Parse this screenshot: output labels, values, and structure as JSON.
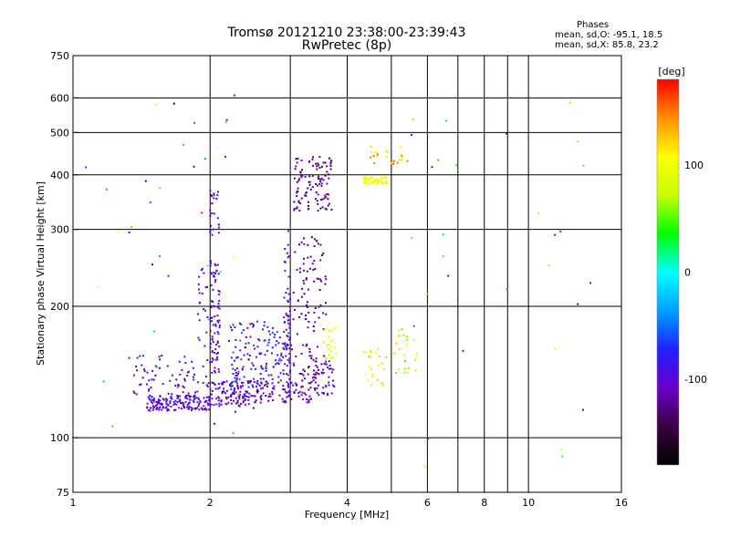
{
  "title": "Tromsø 20121210 23:38:00-23:39:43",
  "subtitle": "RwPretec (8p)",
  "phases": {
    "heading": "Phases",
    "line_o": "mean, sd,O: -95.1, 18.5",
    "line_x": "mean, sd,X: 85.8, 23.2"
  },
  "colorbar": {
    "label": "[deg]",
    "range": [
      -180,
      180
    ],
    "ticks": [
      {
        "value": 100,
        "label": "100"
      },
      {
        "value": 0,
        "label": "0"
      },
      {
        "value": -100,
        "label": "-100"
      }
    ],
    "colors": [
      "#000000",
      "#3a0040",
      "#6a00c8",
      "#2020ff",
      "#00a0ff",
      "#00ffff",
      "#00ff00",
      "#c8ff00",
      "#ffff00",
      "#ff9000",
      "#ff0000"
    ]
  },
  "chart_data": {
    "type": "scatter",
    "title": "Tromsø 20121210 23:38:00-23:39:43",
    "subtitle": "RwPretec (8p)",
    "xlabel": "Frequency [MHz]",
    "ylabel": "Stationary phase Virtual Height [km]",
    "xscale": "log",
    "yscale": "log",
    "xlim": [
      1,
      16
    ],
    "ylim": [
      75,
      750
    ],
    "xticks": [
      {
        "value": 1,
        "label": "1"
      },
      {
        "value": 2,
        "label": "2"
      },
      {
        "value": 4,
        "label": "4"
      },
      {
        "value": 6,
        "label": "6"
      },
      {
        "value": 8,
        "label": "8"
      },
      {
        "value": 10,
        "label": "10"
      },
      {
        "value": 16,
        "label": "16"
      }
    ],
    "xgrid": [
      2,
      3,
      4,
      5,
      6,
      7,
      8,
      9,
      10
    ],
    "yticks": [
      {
        "value": 75,
        "label": "75"
      },
      {
        "value": 100,
        "label": "100"
      },
      {
        "value": 200,
        "label": "200"
      },
      {
        "value": 300,
        "label": "300"
      },
      {
        "value": 400,
        "label": "400"
      },
      {
        "value": 500,
        "label": "500"
      },
      {
        "value": 600,
        "label": "600"
      },
      {
        "value": 750,
        "label": "750"
      }
    ],
    "ygrid": [
      100,
      200,
      300,
      400,
      500,
      600
    ],
    "grid": true,
    "color_by": "phase [deg]",
    "clusters": [
      {
        "freq": [
          1.45,
          2.0
        ],
        "height": [
          115,
          125
        ],
        "phase": [
          -115,
          -85
        ],
        "count": 160
      },
      {
        "freq": [
          1.35,
          2.05
        ],
        "height": [
          125,
          155
        ],
        "phase": [
          -120,
          -80
        ],
        "count": 70
      },
      {
        "freq": [
          2.0,
          2.55
        ],
        "height": [
          118,
          135
        ],
        "phase": [
          -120,
          -80
        ],
        "count": 120
      },
      {
        "freq": [
          2.0,
          2.1
        ],
        "height": [
          140,
          255
        ],
        "phase": [
          -110,
          -90
        ],
        "count": 80
      },
      {
        "freq": [
          2.0,
          2.1
        ],
        "height": [
          280,
          375
        ],
        "phase": [
          -110,
          -90
        ],
        "count": 25
      },
      {
        "freq": [
          1.88,
          1.97
        ],
        "height": [
          160,
          250
        ],
        "phase": [
          -110,
          -90
        ],
        "count": 20
      },
      {
        "freq": [
          2.2,
          3.0
        ],
        "height": [
          130,
          185
        ],
        "phase": [
          -115,
          -50
        ],
        "count": 150
      },
      {
        "freq": [
          2.9,
          3.0
        ],
        "height": [
          125,
          300
        ],
        "phase": [
          -110,
          -90
        ],
        "count": 60
      },
      {
        "freq": [
          2.5,
          3.4
        ],
        "height": [
          120,
          135
        ],
        "phase": [
          -125,
          -95
        ],
        "count": 70
      },
      {
        "freq": [
          3.0,
          3.6
        ],
        "height": [
          125,
          290
        ],
        "phase": [
          -135,
          -105
        ],
        "count": 120
      },
      {
        "freq": [
          3.05,
          3.7
        ],
        "height": [
          330,
          440
        ],
        "phase": [
          -135,
          -110
        ],
        "count": 110
      },
      {
        "freq": [
          3.4,
          3.75
        ],
        "height": [
          125,
          150
        ],
        "phase": [
          -120,
          -90
        ],
        "count": 40
      },
      {
        "freq": [
          3.55,
          3.8
        ],
        "height": [
          150,
          180
        ],
        "phase": [
          60,
          110
        ],
        "count": 25
      },
      {
        "freq": [
          4.3,
          4.9
        ],
        "height": [
          380,
          395
        ],
        "phase": [
          95,
          115
        ],
        "count": 60
      },
      {
        "freq": [
          4.5,
          5.5
        ],
        "height": [
          420,
          470
        ],
        "phase": [
          75,
          160
        ],
        "count": 25
      },
      {
        "freq": [
          4.35,
          4.9
        ],
        "height": [
          130,
          160
        ],
        "phase": [
          45,
          110
        ],
        "count": 25
      },
      {
        "freq": [
          5.0,
          5.7
        ],
        "height": [
          140,
          180
        ],
        "phase": [
          45,
          130
        ],
        "count": 25
      },
      {
        "freq": [
          1.05,
          2.5
        ],
        "height": [
          100,
          620
        ],
        "phase": [
          -180,
          180
        ],
        "count": 45
      },
      {
        "freq": [
          5.5,
          14.0
        ],
        "height": [
          85,
          600
        ],
        "phase": [
          -130,
          150
        ],
        "count": 30
      }
    ]
  }
}
